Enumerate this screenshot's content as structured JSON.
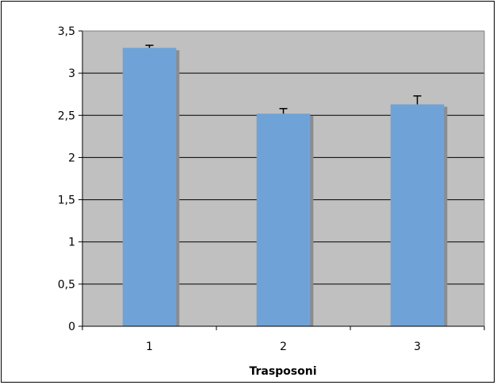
{
  "colors": {
    "plot_background": "#c0c0c0",
    "bar_fill": "#6fa3d8",
    "bar_shadow": "#8c8c8c",
    "gridline": "#000000",
    "error_bar": "#000000"
  },
  "chart_data": {
    "type": "bar",
    "title": "",
    "xlabel": "Trasposoni",
    "ylabel": "",
    "categories": [
      "1",
      "2",
      "3"
    ],
    "values": [
      3.3,
      2.52,
      2.63
    ],
    "error_plus": [
      0.03,
      0.06,
      0.1
    ],
    "ylim": [
      0,
      3.5
    ],
    "yticks": [
      0,
      0.5,
      1,
      1.5,
      2,
      2.5,
      3,
      3.5
    ],
    "ytick_labels": [
      "0",
      "0,5",
      "1",
      "1,5",
      "2",
      "2,5",
      "3",
      "3,5"
    ],
    "grid": "horizontal",
    "legend": "none"
  }
}
